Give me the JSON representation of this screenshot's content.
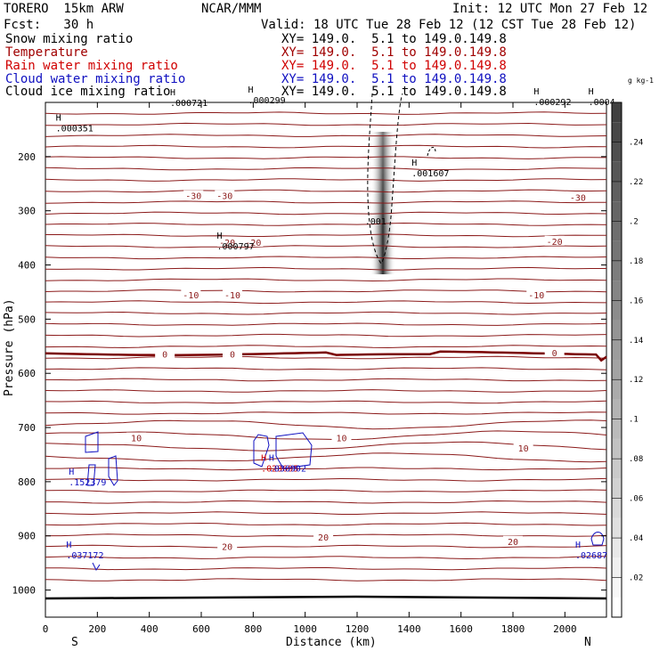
{
  "header": {
    "case": "TORERO  15km ARW",
    "center": "NCAR/MMM",
    "init": "Init: 12 UTC Mon 27 Feb 12",
    "fcst": "Fcst:   30 h",
    "valid": "Valid: 18 UTC Tue 28 Feb 12 (12 CST Tue 28 Feb 12)"
  },
  "fields": [
    {
      "name": "Snow mixing ratio",
      "color": "#000000",
      "xy": "XY= 149.0.  5.1 to 149.0.149.8"
    },
    {
      "name": "Temperature",
      "color": "#a00000",
      "xy": "XY= 149.0.  5.1 to 149.0.149.8"
    },
    {
      "name": "Rain water mixing ratio",
      "color": "#d00000",
      "xy": "XY= 149.0.  5.1 to 149.0.149.8"
    },
    {
      "name": "Cloud water mixing ratio",
      "color": "#1010c0",
      "xy": "XY= 149.0.  5.1 to 149.0.149.8"
    },
    {
      "name": "Cloud ice mixing ratio",
      "color": "#000000",
      "xy": "XY= 149.0.  5.1 to 149.0.149.8"
    }
  ],
  "chart_data": {
    "type": "heatmap",
    "xlabel": "Distance (km)",
    "ylabel": "Pressure (hPa)",
    "x_ticks": [
      0,
      200,
      400,
      600,
      800,
      1000,
      1200,
      1400,
      1600,
      1800,
      2000
    ],
    "y_ticks": [
      200,
      300,
      400,
      500,
      600,
      700,
      800,
      900,
      1000
    ],
    "xlim": [
      0,
      2160
    ],
    "ylim": [
      100,
      1050
    ],
    "end_labels": {
      "left": "S",
      "right": "N"
    },
    "colorbar": {
      "units": "g kg-1",
      "ticks": [
        ".02",
        ".04",
        ".06",
        ".08",
        ".1",
        ".12",
        ".14",
        ".16",
        ".18",
        ".2",
        ".22",
        ".24"
      ],
      "max": 0.26,
      "color": "#404040"
    },
    "temperature_isotherms": [
      {
        "label": "-30",
        "color": "#8b1a1a"
      },
      {
        "label": "-20",
        "color": "#8b1a1a"
      },
      {
        "label": "-10",
        "color": "#8b1a1a"
      },
      {
        "label": "0",
        "color": "#7a0000"
      },
      {
        "label": "10",
        "color": "#8b1a1a"
      },
      {
        "label": "20",
        "color": "#8b1a1a"
      }
    ],
    "temperature_labels": [
      {
        "text": "-30",
        "x": 570,
        "p": 272
      },
      {
        "text": "-30",
        "x": 690,
        "p": 272
      },
      {
        "text": "-30",
        "x": 2050,
        "p": 275
      },
      {
        "text": "-20",
        "x": 700,
        "p": 358
      },
      {
        "text": "-20",
        "x": 800,
        "p": 358
      },
      {
        "text": "-20",
        "x": 1960,
        "p": 356
      },
      {
        "text": "-10",
        "x": 560,
        "p": 455
      },
      {
        "text": "-10",
        "x": 720,
        "p": 455
      },
      {
        "text": "-10",
        "x": 1890,
        "p": 455
      },
      {
        "text": "0",
        "x": 460,
        "p": 564
      },
      {
        "text": "0",
        "x": 720,
        "p": 564
      },
      {
        "text": "0",
        "x": 1960,
        "p": 562
      },
      {
        "text": "10",
        "x": 350,
        "p": 719
      },
      {
        "text": "10",
        "x": 1140,
        "p": 719
      },
      {
        "text": "10",
        "x": 1840,
        "p": 738
      },
      {
        "text": "20",
        "x": 700,
        "p": 919
      },
      {
        "text": "20",
        "x": 1070,
        "p": 902
      },
      {
        "text": "20",
        "x": 1800,
        "p": 910
      }
    ],
    "maxima": [
      {
        "value": ".000721",
        "x": 480,
        "p": 100,
        "color": "#000000"
      },
      {
        "value": ".000299",
        "x": 780,
        "p": 95,
        "color": "#000000"
      },
      {
        "value": ".000292",
        "x": 1880,
        "p": 98,
        "color": "#000000"
      },
      {
        "value": ".0004",
        "x": 2090,
        "p": 98,
        "color": "#000000"
      },
      {
        "value": ".000351",
        "x": 40,
        "p": 147,
        "color": "#000000"
      },
      {
        "value": ".001607",
        "x": 1410,
        "p": 230,
        "color": "#000000"
      },
      {
        "value": ".000797",
        "x": 660,
        "p": 365,
        "color": "#000000"
      },
      {
        "value": ".152379",
        "x": 90,
        "p": 800,
        "color": "#1010c0"
      },
      {
        "value": ".023695",
        "x": 830,
        "p": 775,
        "color": "#d00000"
      },
      {
        "value": ".036902",
        "x": 860,
        "p": 775,
        "color": "#1010c0"
      },
      {
        "value": ".037172",
        "x": 80,
        "p": 935,
        "color": "#1010c0"
      },
      {
        "value": ".02687",
        "x": 2040,
        "p": 935,
        "color": "#1010c0"
      }
    ],
    "snow_label": {
      "value": ".001",
      "x": 1230,
      "p": 325
    },
    "snow_core": {
      "x_center": 1320,
      "p_top": 190,
      "p_bottom": 400,
      "max": 0.26
    }
  }
}
